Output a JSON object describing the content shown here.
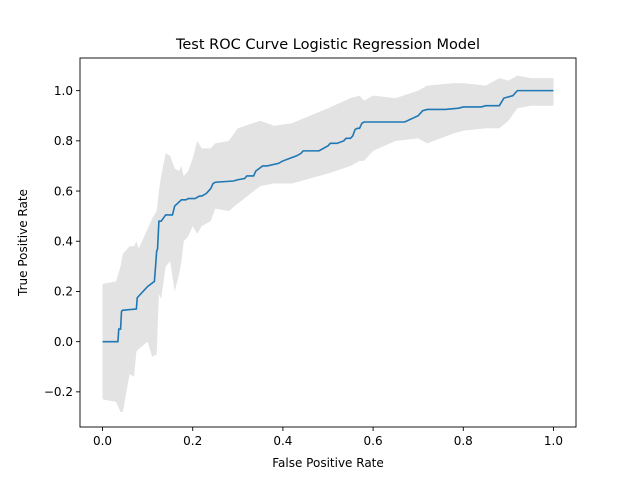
{
  "chart_data": {
    "type": "line",
    "title": "Test ROC Curve Logistic Regression Model",
    "xlabel": "False Positive Rate",
    "ylabel": "True Positive Rate",
    "xlim": [
      -0.05,
      1.05
    ],
    "ylim": [
      -0.34,
      1.13
    ],
    "xticks": [
      0.0,
      0.2,
      0.4,
      0.6,
      0.8,
      1.0
    ],
    "xtick_labels": [
      "0.0",
      "0.2",
      "0.4",
      "0.6",
      "0.8",
      "1.0"
    ],
    "yticks": [
      -0.2,
      0.0,
      0.2,
      0.4,
      0.6,
      0.8,
      1.0
    ],
    "ytick_labels": [
      "−0.2",
      "0.0",
      "0.2",
      "0.4",
      "0.6",
      "0.8",
      "1.0"
    ],
    "grid": false,
    "colors": {
      "line": "#1f77b4",
      "band": "#e3e3e3"
    },
    "series": [
      {
        "type": "line",
        "x": [
          0.0,
          0.034,
          0.036,
          0.04,
          0.042,
          0.044,
          0.075,
          0.077,
          0.1,
          0.115,
          0.118,
          0.12,
          0.122,
          0.125,
          0.13,
          0.14,
          0.155,
          0.16,
          0.175,
          0.178,
          0.185,
          0.19,
          0.205,
          0.215,
          0.22,
          0.23,
          0.235,
          0.24,
          0.245,
          0.25,
          0.29,
          0.3,
          0.315,
          0.32,
          0.335,
          0.34,
          0.355,
          0.36,
          0.365,
          0.39,
          0.4,
          0.415,
          0.43,
          0.44,
          0.445,
          0.46,
          0.48,
          0.5,
          0.505,
          0.52,
          0.535,
          0.54,
          0.55,
          0.555,
          0.56,
          0.565,
          0.57,
          0.575,
          0.58,
          0.6,
          0.62,
          0.67,
          0.7,
          0.705,
          0.71,
          0.72,
          0.76,
          0.79,
          0.8,
          0.84,
          0.85,
          0.88,
          0.89,
          0.91,
          0.92,
          1.0
        ],
        "y": [
          0.0,
          0.0,
          0.05,
          0.05,
          0.12,
          0.125,
          0.13,
          0.175,
          0.22,
          0.24,
          0.31,
          0.36,
          0.37,
          0.48,
          0.48,
          0.505,
          0.505,
          0.54,
          0.565,
          0.565,
          0.565,
          0.57,
          0.57,
          0.58,
          0.58,
          0.59,
          0.6,
          0.61,
          0.63,
          0.635,
          0.64,
          0.645,
          0.65,
          0.66,
          0.66,
          0.68,
          0.7,
          0.7,
          0.7,
          0.71,
          0.72,
          0.73,
          0.74,
          0.75,
          0.76,
          0.76,
          0.76,
          0.78,
          0.79,
          0.79,
          0.8,
          0.81,
          0.81,
          0.82,
          0.845,
          0.85,
          0.85,
          0.87,
          0.875,
          0.875,
          0.875,
          0.875,
          0.9,
          0.91,
          0.92,
          0.925,
          0.925,
          0.93,
          0.935,
          0.935,
          0.94,
          0.94,
          0.97,
          0.98,
          1.0,
          1.0
        ]
      },
      {
        "type": "band",
        "x": [
          0.0,
          0.03,
          0.04,
          0.045,
          0.06,
          0.07,
          0.075,
          0.08,
          0.1,
          0.11,
          0.12,
          0.125,
          0.13,
          0.14,
          0.15,
          0.16,
          0.17,
          0.175,
          0.18,
          0.19,
          0.2,
          0.21,
          0.22,
          0.24,
          0.25,
          0.28,
          0.3,
          0.35,
          0.38,
          0.42,
          0.46,
          0.5,
          0.55,
          0.57,
          0.58,
          0.6,
          0.65,
          0.7,
          0.72,
          0.78,
          0.8,
          0.85,
          0.88,
          0.9,
          0.92,
          0.95,
          1.0
        ],
        "upper": [
          0.23,
          0.24,
          0.3,
          0.35,
          0.38,
          0.38,
          0.4,
          0.37,
          0.45,
          0.49,
          0.52,
          0.6,
          0.66,
          0.75,
          0.74,
          0.69,
          0.68,
          0.7,
          0.66,
          0.68,
          0.73,
          0.8,
          0.77,
          0.77,
          0.79,
          0.8,
          0.85,
          0.88,
          0.86,
          0.87,
          0.9,
          0.93,
          0.97,
          0.98,
          0.96,
          0.98,
          0.97,
          1.0,
          1.02,
          1.03,
          1.03,
          1.02,
          1.05,
          1.04,
          1.06,
          1.05,
          1.05
        ],
        "lower": [
          -0.23,
          -0.24,
          -0.28,
          -0.28,
          -0.13,
          -0.14,
          -0.04,
          -0.03,
          0.0,
          -0.06,
          -0.05,
          0.19,
          0.17,
          0.3,
          0.32,
          0.2,
          0.27,
          0.32,
          0.4,
          0.42,
          0.46,
          0.43,
          0.46,
          0.48,
          0.53,
          0.52,
          0.55,
          0.62,
          0.63,
          0.63,
          0.65,
          0.67,
          0.7,
          0.72,
          0.72,
          0.76,
          0.8,
          0.81,
          0.79,
          0.83,
          0.84,
          0.85,
          0.85,
          0.88,
          0.93,
          0.94,
          0.94
        ]
      }
    ]
  }
}
